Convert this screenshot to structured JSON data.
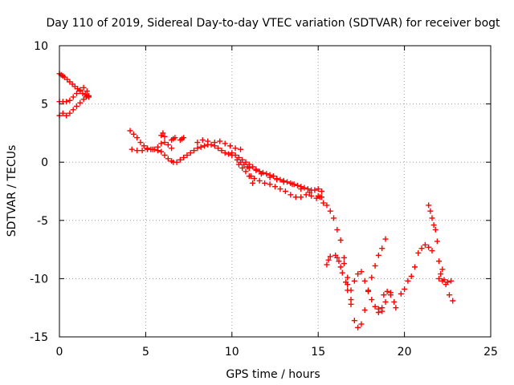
{
  "chart_data": {
    "type": "scatter",
    "title": "Day 110 of 2019, Sidereal Day-to-day VTEC variation (SDTVAR) for receiver bogt",
    "xlabel": "GPS time / hours",
    "ylabel": "SDTVAR / TECUs",
    "xlim": [
      0,
      25
    ],
    "ylim": [
      -15,
      10
    ],
    "grid": true,
    "xticks": [
      0,
      5,
      10,
      15,
      20,
      25
    ],
    "yticks": [
      -15,
      -10,
      -5,
      0,
      5,
      10
    ],
    "marker": "+",
    "series": [
      {
        "name": "bogt",
        "color": "#ff0000",
        "x": [
          0.0,
          0.1,
          0.2,
          0.3,
          0.45,
          0.6,
          0.75,
          0.9,
          1.05,
          1.2,
          1.35,
          1.5,
          1.6,
          1.7,
          0.0,
          0.2,
          0.4,
          0.6,
          0.8,
          1.0,
          1.2,
          1.4,
          1.6,
          1.7,
          0.0,
          0.2,
          0.4,
          0.6,
          0.8,
          1.0,
          1.2,
          1.4,
          1.55,
          1.7,
          4.1,
          4.3,
          4.5,
          4.7,
          4.9,
          5.1,
          5.3,
          5.5,
          5.7,
          5.9,
          6.1,
          6.3,
          6.5,
          4.2,
          4.5,
          4.8,
          5.1,
          5.4,
          5.7,
          5.9,
          6.1,
          6.3,
          6.5,
          6.6,
          6.8,
          7.0,
          7.2,
          7.4,
          7.6,
          7.8,
          8.0,
          8.2,
          8.4,
          8.6,
          8.8,
          9.0,
          9.2,
          9.4,
          9.6,
          9.8,
          10.0,
          5.9,
          6.0,
          6.1,
          6.5,
          6.6,
          6.7,
          7.0,
          7.1,
          7.2,
          8.0,
          8.3,
          8.6,
          9.0,
          9.3,
          9.6,
          9.9,
          10.2,
          10.5,
          10.0,
          10.2,
          10.4,
          10.6,
          10.8,
          11.0,
          11.2,
          11.4,
          11.6,
          11.8,
          12.0,
          12.2,
          12.4,
          12.6,
          12.8,
          13.0,
          13.2,
          13.4,
          13.6,
          13.8,
          14.0,
          14.2,
          14.4,
          14.6,
          14.8,
          15.0,
          15.2,
          10.4,
          10.6,
          10.8,
          11.0,
          11.3,
          11.6,
          11.9,
          12.2,
          12.5,
          12.8,
          13.1,
          13.4,
          13.7,
          14.0,
          14.3,
          14.6,
          14.9,
          15.2,
          10.3,
          10.5,
          10.7,
          10.9,
          11.0,
          11.1,
          11.2,
          11.4,
          11.7,
          12.2,
          12.6,
          13.0,
          13.5,
          14.0,
          14.5,
          15.0,
          15.1,
          15.3,
          15.5,
          15.7,
          15.9,
          16.1,
          16.3,
          16.5,
          16.7,
          16.9,
          17.1,
          17.3,
          17.5,
          17.7,
          17.9,
          18.1,
          18.3,
          18.5,
          18.7,
          16.5,
          16.7,
          16.9,
          17.1,
          17.3,
          17.5,
          17.7,
          17.9,
          18.1,
          18.3,
          18.5,
          18.7,
          18.9,
          15.5,
          15.6,
          15.7,
          16.0,
          16.1,
          16.2,
          16.3,
          16.4,
          16.6,
          16.7,
          16.9,
          18.8,
          19.0,
          19.2,
          19.4,
          18.5,
          18.7,
          18.9,
          19.2,
          19.5,
          19.8,
          20.0,
          20.2,
          20.4,
          20.6,
          20.8,
          21.0,
          21.2,
          21.4,
          21.6,
          21.4,
          21.5,
          21.6,
          21.7,
          21.8,
          21.9,
          22.0,
          22.1,
          22.2,
          22.0,
          22.2,
          22.4,
          22.6,
          22.8,
          22.3,
          22.5,
          22.7
        ],
        "y": [
          7.6,
          7.5,
          7.4,
          7.3,
          7.1,
          6.9,
          6.7,
          6.5,
          6.3,
          6.1,
          5.9,
          5.8,
          5.7,
          5.6,
          5.2,
          5.2,
          5.2,
          5.3,
          5.6,
          5.9,
          6.2,
          6.4,
          6.1,
          5.7,
          4.0,
          4.2,
          4.0,
          4.2,
          4.5,
          4.8,
          5.1,
          5.4,
          5.6,
          5.6,
          2.7,
          2.4,
          2.1,
          1.7,
          1.4,
          1.2,
          1.1,
          1.1,
          1.3,
          1.6,
          1.7,
          1.5,
          1.2,
          1.1,
          1.0,
          1.0,
          1.1,
          1.1,
          1.0,
          0.9,
          0.6,
          0.3,
          0.1,
          0.0,
          0.0,
          0.2,
          0.4,
          0.6,
          0.8,
          1.0,
          1.2,
          1.3,
          1.4,
          1.5,
          1.5,
          1.4,
          1.2,
          1.0,
          0.8,
          0.7,
          0.6,
          2.3,
          2.5,
          2.2,
          1.9,
          2.0,
          2.1,
          1.9,
          2.0,
          2.1,
          1.7,
          1.9,
          1.8,
          1.7,
          1.8,
          1.6,
          1.4,
          1.2,
          1.1,
          0.8,
          0.6,
          0.4,
          0.2,
          0.0,
          -0.2,
          -0.4,
          -0.6,
          -0.8,
          -0.9,
          -1.0,
          -1.1,
          -1.2,
          -1.4,
          -1.5,
          -1.6,
          -1.7,
          -1.8,
          -1.9,
          -2.0,
          -2.1,
          -2.2,
          -2.3,
          -2.4,
          -2.4,
          -2.3,
          -2.5,
          -0.2,
          -0.5,
          -0.8,
          -1.2,
          -1.4,
          -1.6,
          -1.8,
          -1.9,
          -2.1,
          -2.3,
          -2.5,
          -2.8,
          -3.0,
          -3.0,
          -2.8,
          -2.9,
          -3.1,
          -3.0,
          0.2,
          0.0,
          -0.2,
          -0.4,
          -0.5,
          -1.2,
          -1.8,
          -0.7,
          -1.0,
          -1.3,
          -1.5,
          -1.7,
          -1.9,
          -2.3,
          -2.6,
          -2.9,
          -3.0,
          -3.5,
          -3.7,
          -4.2,
          -4.8,
          -5.8,
          -6.7,
          -8.2,
          -9.9,
          -11.0,
          -10.2,
          -9.6,
          -9.4,
          -10.2,
          -11.0,
          -11.8,
          -12.4,
          -12.6,
          -12.8,
          -8.7,
          -10.5,
          -12.2,
          -13.6,
          -14.2,
          -13.9,
          -12.7,
          -11.1,
          -9.9,
          -8.9,
          -8.0,
          -7.4,
          -6.6,
          -8.8,
          -8.4,
          -8.1,
          -8.0,
          -8.2,
          -8.5,
          -9.0,
          -9.5,
          -10.3,
          -11.0,
          -11.8,
          -11.4,
          -11.1,
          -11.4,
          -12.0,
          -12.9,
          -12.5,
          -12.0,
          -11.2,
          -12.5,
          -11.3,
          -10.9,
          -10.2,
          -9.8,
          -9.0,
          -7.8,
          -7.4,
          -7.1,
          -7.3,
          -7.6,
          -3.7,
          -4.2,
          -4.8,
          -5.4,
          -5.8,
          -6.8,
          -8.5,
          -9.6,
          -9.2,
          -10.0,
          -10.2,
          -10.5,
          -11.4,
          -11.9,
          -10.1,
          -10.3,
          -10.2
        ]
      }
    ]
  }
}
